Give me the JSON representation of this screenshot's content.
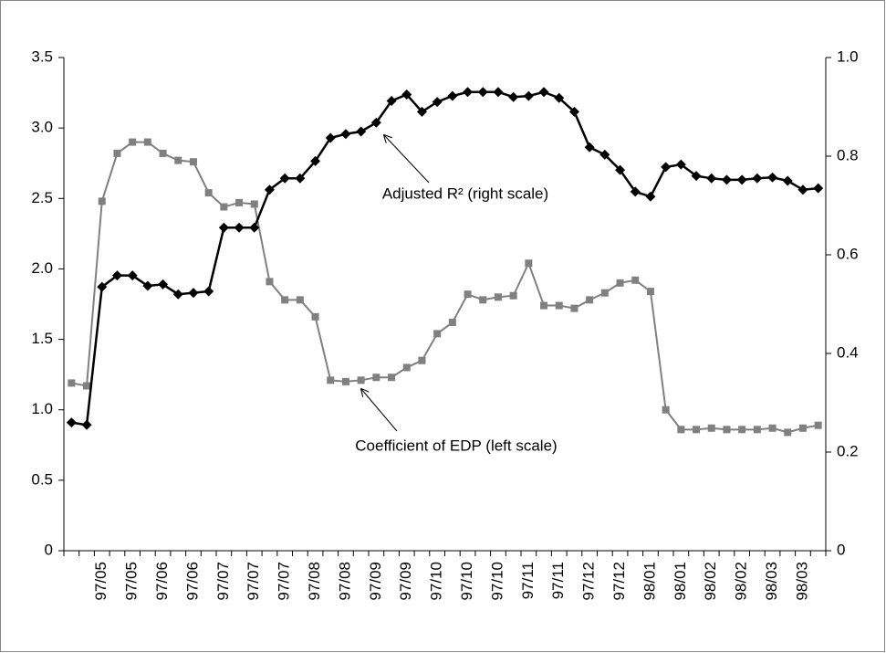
{
  "chart_data": {
    "type": "line",
    "categories": [
      null,
      null,
      "97/05",
      null,
      "97/05",
      null,
      "97/06",
      null,
      "97/06",
      null,
      "97/07",
      null,
      "97/07",
      null,
      "97/07",
      null,
      "97/08",
      null,
      "97/08",
      null,
      "97/09",
      null,
      "97/09",
      null,
      "97/10",
      null,
      "97/10",
      null,
      "97/10",
      null,
      "97/11",
      null,
      "97/11",
      null,
      "97/12",
      null,
      "97/12",
      null,
      "98/01",
      null,
      "98/01",
      null,
      "98/02",
      null,
      "98/02",
      null,
      "98/03",
      null,
      "98/03",
      null
    ],
    "series": [
      {
        "color": "#808080",
        "marker": "square",
        "values": [
          1.19,
          1.17,
          2.48,
          2.82,
          2.9,
          2.9,
          2.82,
          2.77,
          2.76,
          2.54,
          2.44,
          2.47,
          2.46,
          1.91,
          1.78,
          1.78,
          1.66,
          1.21,
          1.2,
          1.21,
          1.23,
          1.23,
          1.3,
          1.35,
          1.54,
          1.62,
          1.82,
          1.78,
          1.8,
          1.81,
          2.04,
          1.74,
          1.74,
          1.72,
          1.78,
          1.83,
          1.9,
          1.92,
          1.84,
          1.0,
          0.86,
          0.86,
          0.87,
          0.86,
          0.86,
          0.86,
          0.87,
          0.84,
          0.87,
          0.89
        ]
      },
      {
        "color": "#000000",
        "marker": "diamond",
        "axis": "y2",
        "values": [
          0.26,
          0.255,
          0.535,
          0.558,
          0.558,
          0.537,
          0.54,
          0.52,
          0.523,
          0.526,
          0.655,
          0.655,
          0.655,
          0.732,
          0.755,
          0.755,
          0.79,
          0.837,
          0.845,
          0.85,
          0.868,
          0.912,
          0.925,
          0.89,
          0.91,
          0.922,
          0.93,
          0.93,
          0.93,
          0.92,
          0.922,
          0.93,
          0.918,
          0.89,
          0.818,
          0.803,
          0.772,
          0.728,
          0.718,
          0.778,
          0.783,
          0.76,
          0.755,
          0.752,
          0.752,
          0.755,
          0.757,
          0.75,
          0.732,
          0.735
        ]
      }
    ],
    "ylim": [
      0,
      3.5
    ],
    "yticks": [
      0,
      0.5,
      {
        "value": 1,
        "label": "1.0"
      },
      1.5,
      {
        "value": 2,
        "label": "2.0"
      },
      2.5,
      {
        "value": 3,
        "label": "3.0"
      },
      3.5
    ],
    "y2lim": [
      0,
      1
    ],
    "y2ticks": [
      0,
      0.2,
      0.4,
      0.6,
      0.8,
      {
        "value": 1,
        "label": "1.0"
      }
    ],
    "grid": false,
    "annotations": [
      "Adjusted R² (right scale)",
      "Coefficient of EDP (left scale)"
    ]
  }
}
